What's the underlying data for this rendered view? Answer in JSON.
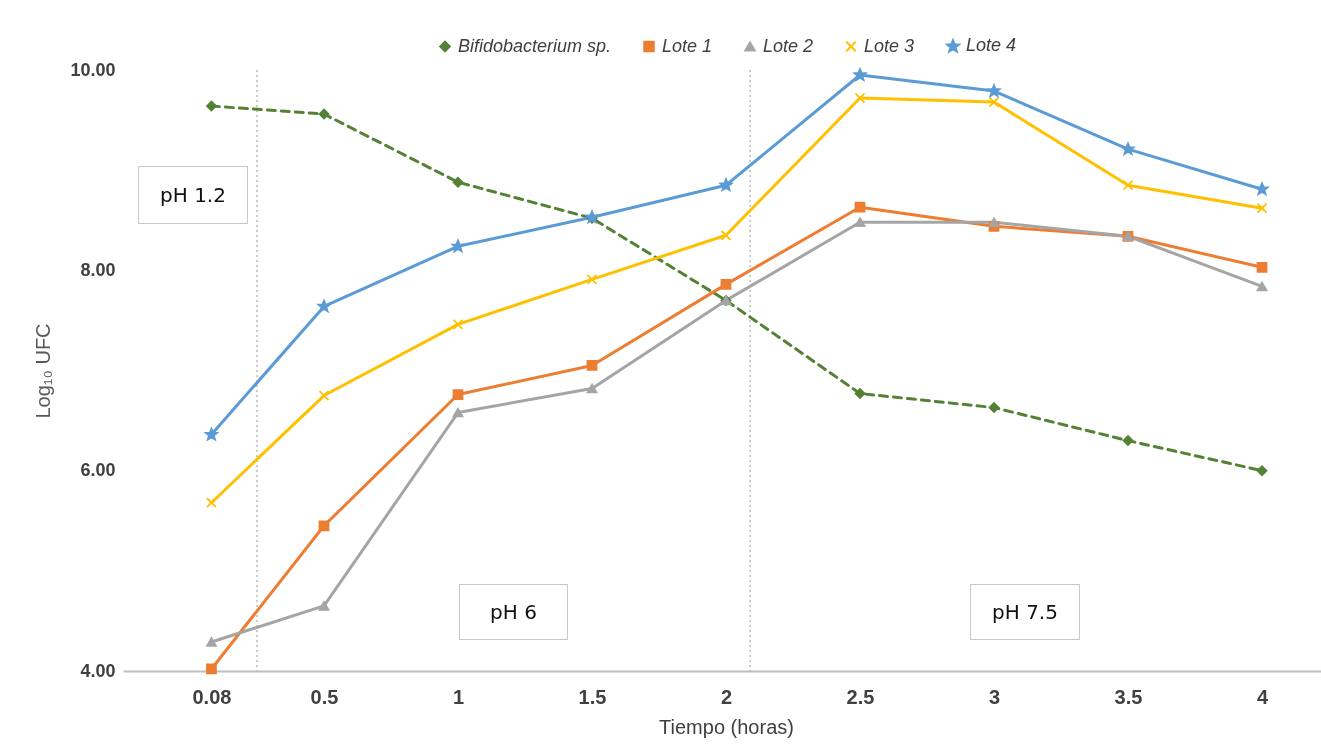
{
  "chart_data": {
    "type": "line",
    "xlabel": "Tiempo (horas)",
    "ylabel": "Log₁₀ UFC",
    "x": [
      0.08,
      0.5,
      1,
      1.5,
      2,
      2.5,
      3,
      3.5,
      4
    ],
    "xlim": [
      -0.25,
      4.25
    ],
    "xticks": [
      0.08,
      0.5,
      1,
      1.5,
      2,
      2.5,
      3,
      3.5,
      4
    ],
    "ylim": [
      4,
      10
    ],
    "yticks": [
      {
        "value": 4,
        "label": "4.00"
      },
      {
        "value": 6,
        "label": "6.00"
      },
      {
        "value": 8,
        "label": "8.00"
      },
      {
        "value": 10,
        "label": "10.00"
      }
    ],
    "grid": false,
    "legend": "top",
    "series": [
      {
        "name": "Bifidobacterium sp.",
        "color": "#548235",
        "marker": "diamond",
        "line_style": "dashed",
        "values": [
          9.64,
          9.56,
          8.88,
          8.52,
          7.7,
          6.77,
          6.63,
          6.3,
          6.0
        ]
      },
      {
        "name": "Lote 1",
        "color": "#ed7d31",
        "marker": "square",
        "line_style": "solid",
        "values": [
          4.02,
          5.45,
          6.76,
          7.05,
          7.86,
          8.63,
          8.44,
          8.34,
          8.03
        ]
      },
      {
        "name": "Lote 2",
        "color": "#a5a5a5",
        "marker": "triangle",
        "line_style": "solid",
        "values": [
          4.29,
          4.65,
          6.58,
          6.82,
          7.7,
          8.48,
          8.48,
          8.34,
          7.84
        ]
      },
      {
        "name": "Lote 3",
        "color": "#ffc000",
        "marker": "cross",
        "line_style": "solid",
        "values": [
          5.68,
          6.75,
          7.46,
          7.91,
          8.35,
          9.72,
          9.68,
          8.85,
          8.62
        ]
      },
      {
        "name": "Lote 4",
        "color": "#5b9bd5",
        "marker": "star",
        "line_style": "solid",
        "values": [
          6.36,
          7.64,
          8.24,
          8.53,
          8.85,
          9.95,
          9.79,
          9.21,
          8.81
        ]
      }
    ],
    "ref_lines": [
      {
        "axis": "x",
        "value": 0.25,
        "color": "#999999",
        "line_style": "dotted"
      },
      {
        "axis": "x",
        "value": 2.09,
        "color": "#999999",
        "line_style": "dotted"
      }
    ],
    "annotations": [
      "pH 1.2",
      "pH 6",
      "pH 7.5"
    ]
  }
}
